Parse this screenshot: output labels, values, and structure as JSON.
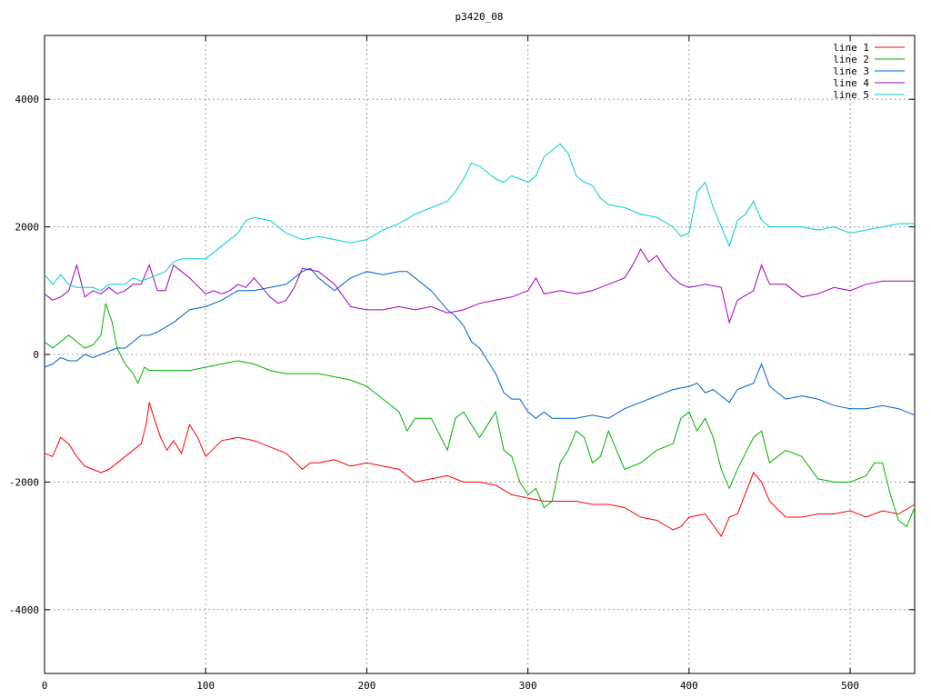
{
  "chart_data": {
    "type": "line",
    "title": "p3420_08",
    "xlim": [
      0,
      540
    ],
    "ylim": [
      -5000,
      5000
    ],
    "xticks": [
      0,
      100,
      200,
      300,
      400,
      500
    ],
    "yticks": [
      -4000,
      -2000,
      0,
      2000,
      4000
    ],
    "xtick_labels": [
      "0",
      "100",
      "200",
      "300",
      "400",
      "500"
    ],
    "ytick_labels": [
      "-4000",
      "-2000",
      "0",
      "2000",
      "4000"
    ],
    "grid": true,
    "legend_position": "top-right",
    "series": [
      {
        "name": "line 1",
        "color": "#ff0000",
        "x": [
          0,
          5,
          10,
          15,
          20,
          25,
          30,
          35,
          40,
          45,
          50,
          55,
          60,
          63,
          65,
          68,
          72,
          76,
          80,
          85,
          90,
          95,
          100,
          110,
          120,
          130,
          140,
          150,
          160,
          165,
          170,
          180,
          190,
          200,
          210,
          220,
          230,
          240,
          250,
          260,
          270,
          280,
          290,
          300,
          310,
          320,
          330,
          340,
          350,
          360,
          370,
          380,
          390,
          395,
          400,
          410,
          420,
          425,
          430,
          440,
          445,
          450,
          460,
          470,
          480,
          490,
          500,
          510,
          520,
          530,
          540
        ],
        "y": [
          -1550,
          -1600,
          -1300,
          -1400,
          -1600,
          -1750,
          -1800,
          -1850,
          -1800,
          -1700,
          -1600,
          -1500,
          -1400,
          -1100,
          -750,
          -1000,
          -1300,
          -1500,
          -1350,
          -1550,
          -1100,
          -1300,
          -1600,
          -1350,
          -1300,
          -1350,
          -1450,
          -1550,
          -1800,
          -1700,
          -1700,
          -1650,
          -1750,
          -1700,
          -1750,
          -1800,
          -2000,
          -1950,
          -1900,
          -2000,
          -2000,
          -2050,
          -2200,
          -2250,
          -2300,
          -2300,
          -2300,
          -2350,
          -2350,
          -2400,
          -2550,
          -2600,
          -2750,
          -2700,
          -2550,
          -2500,
          -2850,
          -2550,
          -2500,
          -1850,
          -2000,
          -2300,
          -2550,
          -2550,
          -2500,
          -2500,
          -2450,
          -2550,
          -2450,
          -2500,
          -2350
        ]
      },
      {
        "name": "line 2",
        "color": "#00b000",
        "x": [
          0,
          5,
          10,
          15,
          20,
          25,
          30,
          35,
          38,
          42,
          45,
          50,
          55,
          58,
          62,
          65,
          70,
          80,
          90,
          100,
          110,
          120,
          130,
          140,
          150,
          160,
          170,
          180,
          190,
          200,
          210,
          220,
          225,
          230,
          240,
          250,
          255,
          260,
          270,
          275,
          280,
          285,
          290,
          295,
          300,
          305,
          310,
          315,
          320,
          325,
          330,
          335,
          340,
          345,
          350,
          360,
          370,
          380,
          390,
          395,
          400,
          405,
          410,
          415,
          420,
          425,
          430,
          440,
          445,
          450,
          460,
          470,
          480,
          490,
          500,
          510,
          515,
          520,
          525,
          530,
          535,
          540
        ],
        "y": [
          200,
          100,
          200,
          300,
          200,
          100,
          150,
          300,
          800,
          500,
          100,
          -150,
          -300,
          -450,
          -200,
          -250,
          -250,
          -250,
          -250,
          -200,
          -150,
          -100,
          -150,
          -250,
          -300,
          -300,
          -300,
          -350,
          -400,
          -500,
          -700,
          -900,
          -1200,
          -1000,
          -1000,
          -1500,
          -1000,
          -900,
          -1300,
          -1100,
          -900,
          -1500,
          -1600,
          -2000,
          -2200,
          -2100,
          -2400,
          -2300,
          -1700,
          -1500,
          -1200,
          -1300,
          -1700,
          -1600,
          -1200,
          -1800,
          -1700,
          -1500,
          -1400,
          -1000,
          -900,
          -1200,
          -1000,
          -1300,
          -1800,
          -2100,
          -1800,
          -1300,
          -1200,
          -1700,
          -1500,
          -1600,
          -1950,
          -2000,
          -2000,
          -1900,
          -1700,
          -1700,
          -2200,
          -2600,
          -2700,
          -2400
        ]
      },
      {
        "name": "line 3",
        "color": "#0060d0",
        "x": [
          0,
          5,
          10,
          15,
          20,
          25,
          30,
          35,
          40,
          45,
          50,
          55,
          60,
          65,
          70,
          80,
          90,
          100,
          110,
          120,
          130,
          140,
          150,
          160,
          165,
          170,
          175,
          180,
          185,
          190,
          200,
          210,
          220,
          225,
          230,
          240,
          250,
          255,
          260,
          265,
          270,
          275,
          280,
          285,
          290,
          295,
          300,
          305,
          310,
          315,
          320,
          330,
          340,
          350,
          360,
          370,
          380,
          390,
          400,
          405,
          410,
          415,
          420,
          425,
          430,
          435,
          440,
          445,
          450,
          460,
          470,
          480,
          490,
          500,
          510,
          520,
          530,
          540
        ],
        "y": [
          -200,
          -150,
          -50,
          -100,
          -100,
          0,
          -50,
          0,
          50,
          100,
          100,
          200,
          300,
          300,
          350,
          500,
          700,
          750,
          850,
          1000,
          1000,
          1050,
          1100,
          1300,
          1350,
          1200,
          1100,
          1000,
          1100,
          1200,
          1300,
          1250,
          1300,
          1300,
          1200,
          1000,
          700,
          600,
          450,
          200,
          100,
          -100,
          -300,
          -600,
          -700,
          -700,
          -900,
          -1000,
          -900,
          -1000,
          -1000,
          -1000,
          -950,
          -1000,
          -850,
          -750,
          -650,
          -550,
          -500,
          -450,
          -600,
          -550,
          -650,
          -750,
          -550,
          -500,
          -450,
          -150,
          -500,
          -700,
          -650,
          -700,
          -800,
          -850,
          -850,
          -800,
          -850,
          -950
        ]
      },
      {
        "name": "line 4",
        "color": "#a000c0",
        "x": [
          0,
          5,
          10,
          15,
          20,
          25,
          30,
          35,
          40,
          45,
          50,
          55,
          60,
          65,
          70,
          75,
          80,
          90,
          100,
          105,
          110,
          115,
          120,
          125,
          130,
          140,
          145,
          150,
          155,
          160,
          170,
          180,
          190,
          200,
          210,
          220,
          230,
          240,
          250,
          260,
          270,
          280,
          290,
          300,
          305,
          310,
          320,
          330,
          340,
          350,
          360,
          365,
          370,
          375,
          380,
          385,
          390,
          395,
          400,
          410,
          420,
          425,
          430,
          440,
          445,
          450,
          460,
          470,
          480,
          490,
          500,
          510,
          520,
          530,
          540
        ],
        "y": [
          950,
          850,
          900,
          1000,
          1400,
          900,
          1000,
          950,
          1050,
          950,
          1000,
          1100,
          1100,
          1400,
          1000,
          1000,
          1400,
          1200,
          950,
          1000,
          950,
          1000,
          1100,
          1050,
          1200,
          900,
          800,
          850,
          1050,
          1350,
          1300,
          1100,
          750,
          700,
          700,
          750,
          700,
          750,
          650,
          700,
          800,
          850,
          900,
          1000,
          1200,
          950,
          1000,
          950,
          1000,
          1100,
          1200,
          1400,
          1650,
          1450,
          1550,
          1350,
          1200,
          1100,
          1050,
          1100,
          1050,
          500,
          850,
          1000,
          1400,
          1100,
          1100,
          900,
          950,
          1050,
          1000,
          1100,
          1150,
          1150,
          1150
        ]
      },
      {
        "name": "line 5",
        "color": "#00d0d0",
        "x": [
          0,
          5,
          10,
          15,
          20,
          25,
          30,
          35,
          40,
          45,
          50,
          55,
          60,
          65,
          70,
          75,
          80,
          85,
          90,
          100,
          110,
          120,
          125,
          130,
          140,
          150,
          160,
          170,
          180,
          190,
          200,
          210,
          220,
          230,
          240,
          250,
          255,
          260,
          265,
          270,
          275,
          280,
          285,
          290,
          295,
          300,
          305,
          310,
          315,
          320,
          325,
          330,
          335,
          340,
          345,
          350,
          360,
          370,
          380,
          390,
          395,
          400,
          405,
          410,
          415,
          420,
          425,
          430,
          435,
          440,
          445,
          450,
          460,
          470,
          480,
          490,
          500,
          510,
          520,
          530,
          540
        ],
        "y": [
          1250,
          1100,
          1250,
          1100,
          1050,
          1050,
          1050,
          1000,
          1100,
          1100,
          1100,
          1200,
          1150,
          1200,
          1250,
          1300,
          1450,
          1500,
          1500,
          1500,
          1700,
          1900,
          2100,
          2150,
          2100,
          1900,
          1800,
          1850,
          1800,
          1750,
          1800,
          1950,
          2050,
          2200,
          2300,
          2400,
          2550,
          2750,
          3000,
          2950,
          2850,
          2750,
          2700,
          2800,
          2750,
          2700,
          2800,
          3100,
          3200,
          3300,
          3150,
          2800,
          2700,
          2650,
          2450,
          2350,
          2300,
          2200,
          2150,
          2000,
          1850,
          1900,
          2550,
          2700,
          2300,
          2000,
          1700,
          2100,
          2200,
          2400,
          2100,
          2000,
          2000,
          2000,
          1950,
          2000,
          1900,
          1950,
          2000,
          2050,
          2050
        ]
      }
    ]
  }
}
